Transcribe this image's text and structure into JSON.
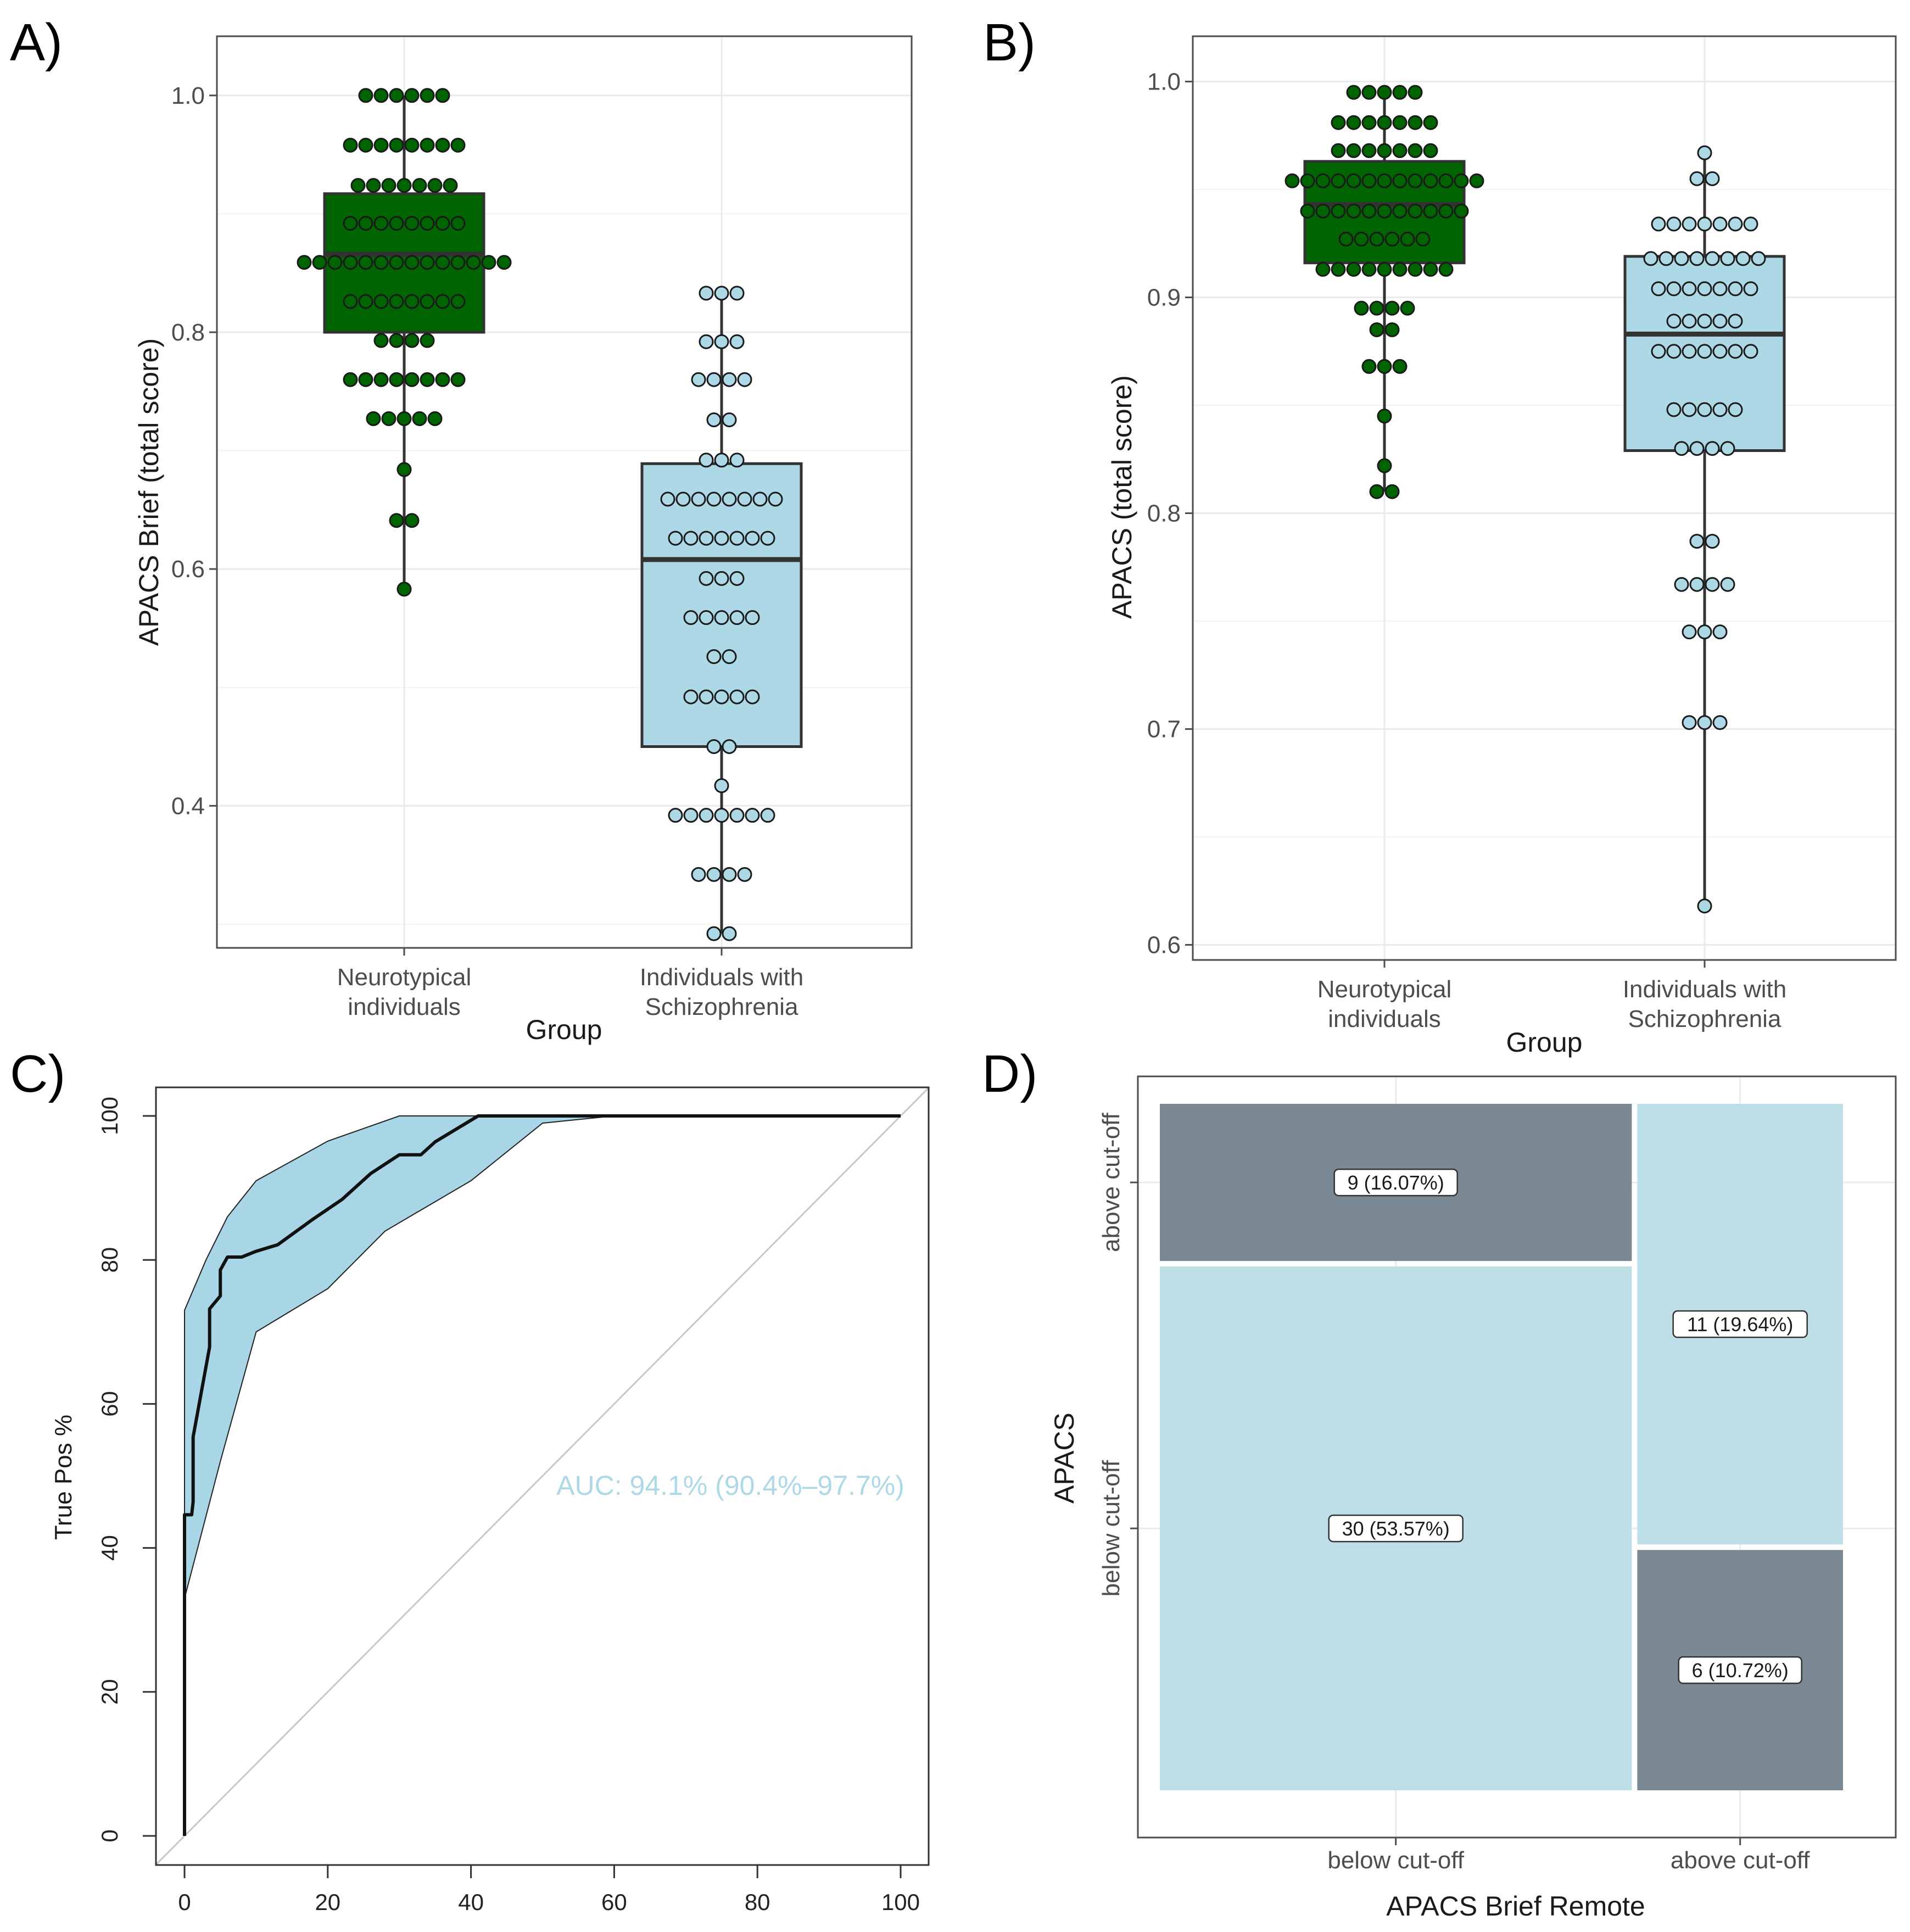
{
  "colors": {
    "neurotypical": "#006400",
    "schizophrenia": "#add8e6",
    "box_outline": "#333333",
    "auc_text": "#add8e6",
    "roc_band": "#a8d6e6",
    "mosaic_dark": "#7a8894",
    "mosaic_light": "#bedfe8"
  },
  "chart_data": [
    {
      "panel": "A)",
      "type": "boxplot",
      "ylabel": "APACS Brief (total score)",
      "xlabel": "Group",
      "ylim": [
        0.28,
        1.05
      ],
      "yticks": [
        0.4,
        0.6,
        0.8,
        1.0
      ],
      "ytick_labels": [
        "0.4",
        "0.6",
        "0.8",
        "1.0"
      ],
      "categories": [
        "Neurotypical individuals",
        "Individuals with Schizophrenia"
      ],
      "category_lines": [
        [
          "Neurotypical",
          "individuals"
        ],
        [
          "Individuals with",
          "Schizophrenia"
        ]
      ],
      "boxes": [
        {
          "group": "Neurotypical individuals",
          "q1": 0.8,
          "median": 0.866,
          "q3": 0.917,
          "whisker_low": 0.583,
          "whisker_high": 1.0,
          "color_key": "neurotypical"
        },
        {
          "group": "Individuals with Schizophrenia",
          "q1": 0.45,
          "median": 0.608,
          "q3": 0.689,
          "whisker_low": 0.292,
          "whisker_high": 0.833,
          "color_key": "schizophrenia"
        }
      ],
      "points": [
        [
          [
            1.0,
            6
          ],
          [
            0.958,
            8
          ],
          [
            0.924,
            7
          ],
          [
            0.892,
            8
          ],
          [
            0.859,
            14
          ],
          [
            0.826,
            8
          ],
          [
            0.793,
            4
          ],
          [
            0.76,
            8
          ],
          [
            0.727,
            5
          ],
          [
            0.684,
            1
          ],
          [
            0.641,
            2
          ],
          [
            0.583,
            1
          ]
        ],
        [
          [
            0.833,
            3
          ],
          [
            0.792,
            3
          ],
          [
            0.76,
            4
          ],
          [
            0.726,
            2
          ],
          [
            0.692,
            3
          ],
          [
            0.659,
            8
          ],
          [
            0.626,
            7
          ],
          [
            0.592,
            3
          ],
          [
            0.559,
            5
          ],
          [
            0.526,
            2
          ],
          [
            0.492,
            5
          ],
          [
            0.45,
            2
          ],
          [
            0.417,
            1
          ],
          [
            0.392,
            7
          ],
          [
            0.342,
            4
          ],
          [
            0.292,
            2
          ]
        ]
      ]
    },
    {
      "panel": "B)",
      "type": "boxplot",
      "ylabel": "APACS (total score)",
      "xlabel": "Group",
      "ylim": [
        0.593,
        1.021
      ],
      "yticks": [
        0.6,
        0.7,
        0.8,
        0.9,
        1.0
      ],
      "ytick_labels": [
        "0.6",
        "0.7",
        "0.8",
        "0.9",
        "1.0"
      ],
      "categories": [
        "Neurotypical individuals",
        "Individuals with Schizophrenia"
      ],
      "category_lines": [
        [
          "Neurotypical",
          "individuals"
        ],
        [
          "Individuals with",
          "Schizophrenia"
        ]
      ],
      "boxes": [
        {
          "group": "Neurotypical individuals",
          "q1": 0.916,
          "median": 0.943,
          "q3": 0.963,
          "whisker_low": 0.81,
          "whisker_high": 0.995,
          "color_key": "neurotypical"
        },
        {
          "group": "Individuals with Schizophrenia",
          "q1": 0.829,
          "median": 0.883,
          "q3": 0.919,
          "whisker_low": 0.618,
          "whisker_high": 0.967,
          "color_key": "schizophrenia"
        }
      ],
      "points": [
        [
          [
            0.995,
            5
          ],
          [
            0.981,
            7
          ],
          [
            0.968,
            7
          ],
          [
            0.954,
            13
          ],
          [
            0.94,
            11
          ],
          [
            0.927,
            6
          ],
          [
            0.913,
            9
          ],
          [
            0.895,
            4
          ],
          [
            0.885,
            2
          ],
          [
            0.868,
            3
          ],
          [
            0.845,
            1
          ],
          [
            0.822,
            1
          ],
          [
            0.81,
            2
          ]
        ],
        [
          [
            0.967,
            1
          ],
          [
            0.955,
            2
          ],
          [
            0.934,
            7
          ],
          [
            0.918,
            8
          ],
          [
            0.904,
            7
          ],
          [
            0.889,
            5
          ],
          [
            0.875,
            7
          ],
          [
            0.848,
            5
          ],
          [
            0.83,
            4
          ],
          [
            0.787,
            2
          ],
          [
            0.767,
            4
          ],
          [
            0.745,
            3
          ],
          [
            0.703,
            3
          ],
          [
            0.618,
            1
          ]
        ]
      ]
    },
    {
      "panel": "C)",
      "type": "line",
      "ylabel": "True Pos %",
      "xlabel": "",
      "xlim": [
        0,
        100
      ],
      "ylim": [
        0,
        100
      ],
      "xticks": [
        0,
        20,
        40,
        60,
        80,
        100
      ],
      "xtick_labels": [
        "0",
        "20",
        "40",
        "60",
        "80",
        "100"
      ],
      "yticks": [
        0,
        20,
        40,
        60,
        80,
        100
      ],
      "ytick_labels": [
        "0",
        "20",
        "40",
        "60",
        "80",
        "100"
      ],
      "annotation": "AUC: 94.1% (90.4%–97.7%)",
      "series": [
        {
          "name": "ROC",
          "x": [
            0,
            0,
            1,
            1.2,
            1.2,
            3.5,
            3.5,
            5,
            5,
            6,
            7,
            8,
            10,
            13,
            18,
            22,
            23,
            26,
            30,
            32,
            33,
            35,
            38,
            41,
            100
          ],
          "y": [
            0,
            44.6,
            44.6,
            46.4,
            55.4,
            67.9,
            73.2,
            75,
            78.6,
            80.4,
            80.4,
            80.4,
            81.2,
            82.1,
            85.7,
            88.4,
            89.3,
            92,
            94.6,
            94.6,
            94.6,
            96.4,
            98.2,
            100,
            100
          ]
        },
        {
          "name": "CI upper",
          "x": [
            0,
            0,
            3,
            6,
            10,
            20,
            30,
            40,
            100
          ],
          "y": [
            0,
            73,
            80,
            86,
            91,
            96.5,
            100,
            100,
            100
          ]
        },
        {
          "name": "CI lower",
          "x": [
            0,
            0,
            5,
            10,
            20,
            28,
            40,
            50,
            60,
            100
          ],
          "y": [
            0,
            33,
            52,
            70,
            76,
            84,
            91,
            99,
            100,
            100
          ]
        },
        {
          "name": "chance",
          "x": [
            -4,
            104
          ],
          "y": [
            -4,
            104
          ]
        }
      ]
    },
    {
      "panel": "D)",
      "type": "mosaic",
      "xlabel": "APACS Brief Remote",
      "ylabel": "APACS",
      "x_categories": [
        "below cut-off",
        "above cut-off"
      ],
      "y_categories": [
        "above cut-off",
        "below cut-off"
      ],
      "cells": [
        {
          "x": "below cut-off",
          "y": "above cut-off",
          "count": 9,
          "label": "9 (16.07%)",
          "color_key": "mosaic_dark"
        },
        {
          "x": "below cut-off",
          "y": "below cut-off",
          "count": 30,
          "label": "30 (53.57%)",
          "color_key": "mosaic_light"
        },
        {
          "x": "above cut-off",
          "y": "above cut-off",
          "count": 11,
          "label": "11 (19.64%)",
          "color_key": "mosaic_light"
        },
        {
          "x": "above cut-off",
          "y": "below cut-off",
          "count": 6,
          "label": "6 (10.72%)",
          "color_key": "mosaic_dark"
        }
      ]
    }
  ]
}
